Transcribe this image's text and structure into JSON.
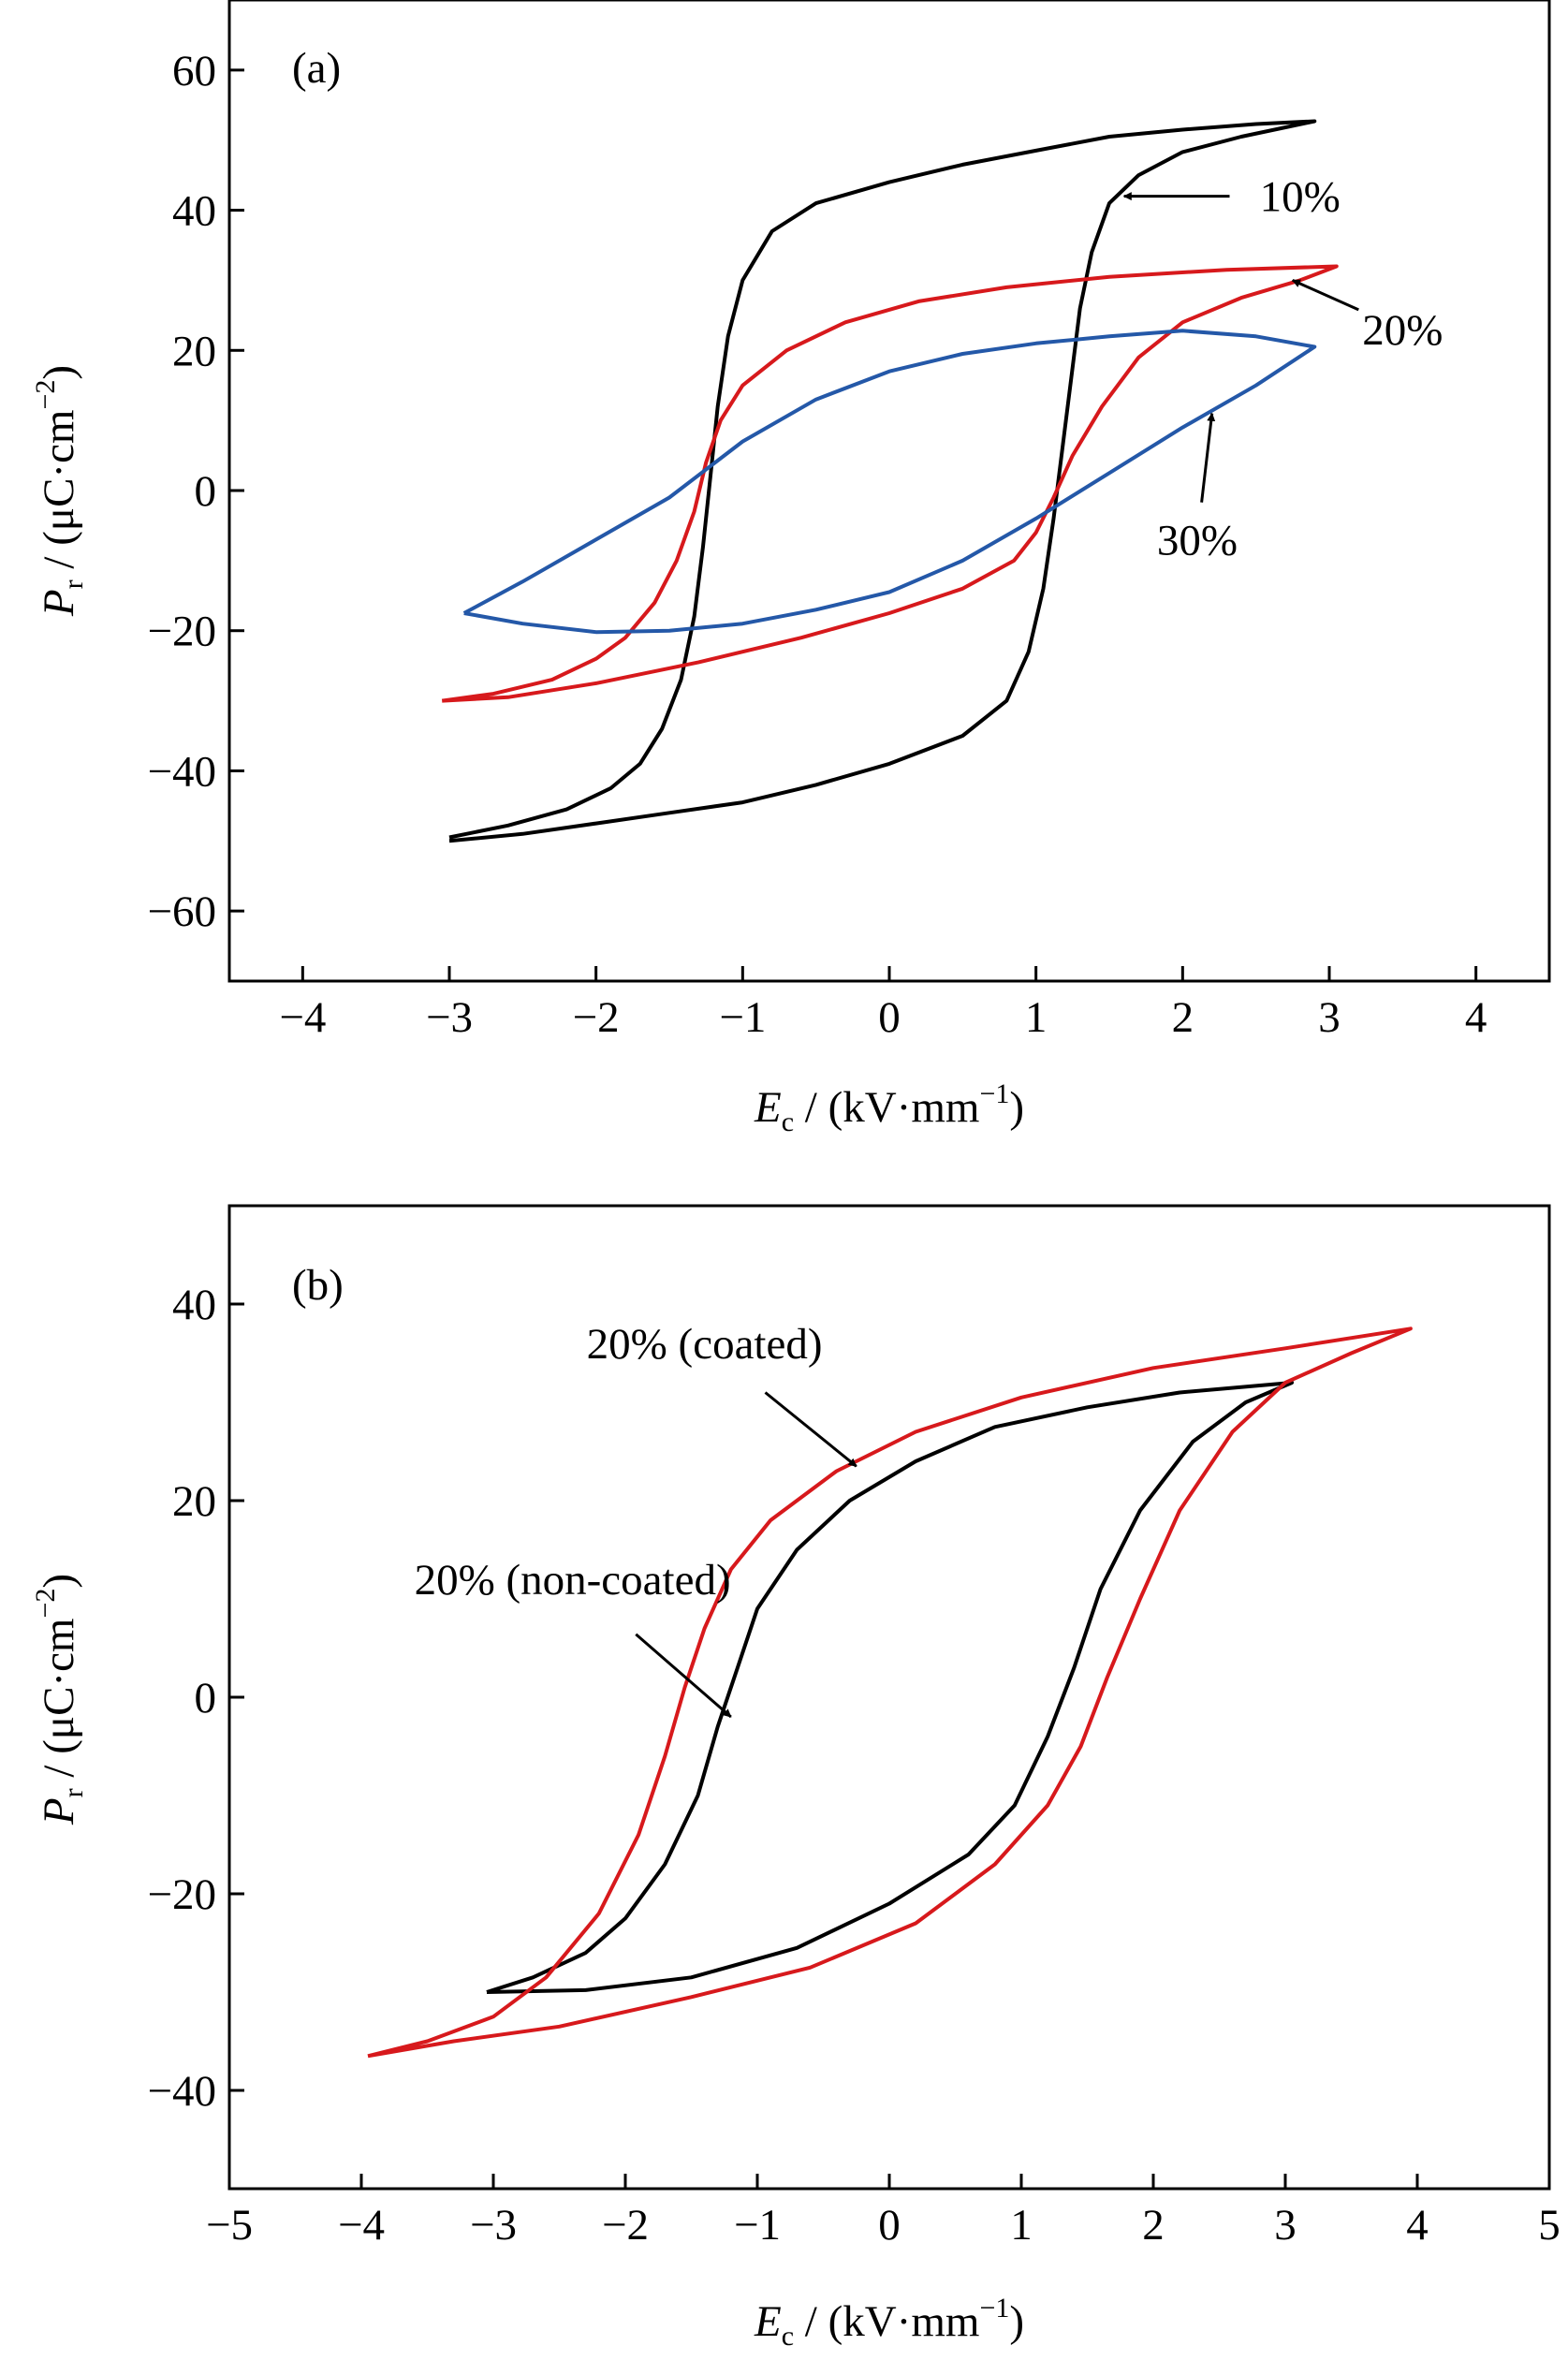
{
  "chart_data": [
    {
      "type": "line",
      "panel_label": "(a)",
      "xlabel_main": "E",
      "xlabel_sub": "c",
      "xlabel_rest": " / (kV·mm",
      "xlabel_sup": "−1",
      "xlabel_close": ")",
      "ylabel_main": "P",
      "ylabel_sub": "r",
      "ylabel_rest": " / (μC·cm",
      "ylabel_sup": "−2",
      "ylabel_close": ")",
      "xlim": [
        -4.5,
        4.5
      ],
      "ylim": [
        -70,
        70
      ],
      "xticks": [
        -4,
        -3,
        -2,
        -1,
        0,
        1,
        2,
        3,
        4
      ],
      "xtick_labels": [
        "−4",
        "−3",
        "−2",
        "−1",
        "0",
        "1",
        "2",
        "3",
        "4"
      ],
      "yticks": [
        -60,
        -40,
        -20,
        0,
        20,
        40,
        60
      ],
      "ytick_labels": [
        "−60",
        "−40",
        "−20",
        "0",
        "20",
        "40",
        "60"
      ],
      "grid": false,
      "series": [
        {
          "name": "10%",
          "color": "#000000",
          "upper": [
            [
              -3.0,
              -49.5
            ],
            [
              -2.6,
              -47.8
            ],
            [
              -2.2,
              -45.5
            ],
            [
              -1.9,
              -42.5
            ],
            [
              -1.7,
              -39
            ],
            [
              -1.55,
              -34
            ],
            [
              -1.42,
              -27
            ],
            [
              -1.33,
              -18
            ],
            [
              -1.27,
              -8
            ],
            [
              -1.22,
              2
            ],
            [
              -1.17,
              12
            ],
            [
              -1.1,
              22
            ],
            [
              -1.0,
              30
            ],
            [
              -0.8,
              37
            ],
            [
              -0.5,
              41
            ],
            [
              0,
              44
            ],
            [
              0.5,
              46.5
            ],
            [
              1.0,
              48.5
            ],
            [
              1.5,
              50.5
            ],
            [
              2.0,
              51.5
            ],
            [
              2.5,
              52.3
            ],
            [
              2.9,
              52.7
            ]
          ],
          "lower": [
            [
              2.9,
              52.7
            ],
            [
              2.4,
              50.5
            ],
            [
              2.0,
              48.3
            ],
            [
              1.7,
              45
            ],
            [
              1.5,
              41
            ],
            [
              1.38,
              34
            ],
            [
              1.3,
              26
            ],
            [
              1.24,
              16
            ],
            [
              1.18,
              6
            ],
            [
              1.12,
              -4
            ],
            [
              1.05,
              -14
            ],
            [
              0.95,
              -23
            ],
            [
              0.8,
              -30
            ],
            [
              0.5,
              -35
            ],
            [
              0,
              -39
            ],
            [
              -0.5,
              -42
            ],
            [
              -1.0,
              -44.5
            ],
            [
              -1.5,
              -46
            ],
            [
              -2.0,
              -47.5
            ],
            [
              -2.5,
              -49
            ],
            [
              -3.0,
              -50
            ]
          ]
        },
        {
          "name": "20%",
          "color": "#d7191c",
          "upper": [
            [
              -3.05,
              -30
            ],
            [
              -2.7,
              -29
            ],
            [
              -2.3,
              -27
            ],
            [
              -2.0,
              -24
            ],
            [
              -1.8,
              -21
            ],
            [
              -1.6,
              -16
            ],
            [
              -1.45,
              -10
            ],
            [
              -1.33,
              -3
            ],
            [
              -1.25,
              4
            ],
            [
              -1.15,
              10
            ],
            [
              -1.0,
              15
            ],
            [
              -0.7,
              20
            ],
            [
              -0.3,
              24
            ],
            [
              0.2,
              27
            ],
            [
              0.8,
              29
            ],
            [
              1.5,
              30.5
            ],
            [
              2.3,
              31.5
            ],
            [
              3.05,
              32
            ]
          ],
          "lower": [
            [
              3.05,
              32
            ],
            [
              2.8,
              30
            ],
            [
              2.4,
              27.5
            ],
            [
              2.0,
              24
            ],
            [
              1.7,
              19
            ],
            [
              1.45,
              12
            ],
            [
              1.25,
              5
            ],
            [
              1.12,
              -1
            ],
            [
              1.0,
              -6
            ],
            [
              0.85,
              -10
            ],
            [
              0.5,
              -14
            ],
            [
              0,
              -17.5
            ],
            [
              -0.6,
              -21
            ],
            [
              -1.3,
              -24.5
            ],
            [
              -2.0,
              -27.5
            ],
            [
              -2.6,
              -29.5
            ],
            [
              -3.05,
              -30
            ]
          ]
        },
        {
          "name": "30%",
          "color": "#2458a8",
          "upper": [
            [
              -2.9,
              -17.5
            ],
            [
              -2.5,
              -13
            ],
            [
              -2.0,
              -7
            ],
            [
              -1.5,
              -1
            ],
            [
              -1.0,
              7
            ],
            [
              -0.5,
              13
            ],
            [
              0,
              17
            ],
            [
              0.5,
              19.5
            ],
            [
              1.0,
              21
            ],
            [
              1.5,
              22
            ],
            [
              2.0,
              22.8
            ],
            [
              2.5,
              22
            ],
            [
              2.9,
              20.5
            ]
          ],
          "lower": [
            [
              2.9,
              20.5
            ],
            [
              2.5,
              15
            ],
            [
              2.0,
              9
            ],
            [
              1.5,
              2.5
            ],
            [
              1.0,
              -4
            ],
            [
              0.5,
              -10
            ],
            [
              0,
              -14.5
            ],
            [
              -0.5,
              -17
            ],
            [
              -1.0,
              -19
            ],
            [
              -1.5,
              -20
            ],
            [
              -2.0,
              -20.2
            ],
            [
              -2.5,
              -19
            ],
            [
              -2.9,
              -17.5
            ]
          ]
        }
      ],
      "annotations": [
        {
          "text": "10%",
          "tip": [
            1.6,
            42
          ],
          "text_pos": [
            2.8,
            42
          ]
        },
        {
          "text": "20%",
          "tip": [
            2.75,
            30
          ],
          "text_pos": [
            3.5,
            23
          ]
        },
        {
          "text": "30%",
          "tip": [
            2.2,
            11
          ],
          "text_pos": [
            2.1,
            -7
          ]
        }
      ]
    },
    {
      "type": "line",
      "panel_label": "(b)",
      "xlabel_main": "E",
      "xlabel_sub": "c",
      "xlabel_rest": " / (kV·mm",
      "xlabel_sup": "−1",
      "xlabel_close": ")",
      "ylabel_main": "P",
      "ylabel_sub": "r",
      "ylabel_rest": " / (μC·cm",
      "ylabel_sup": "−2",
      "ylabel_close": ")",
      "xlim": [
        -5,
        5
      ],
      "ylim": [
        -50,
        50
      ],
      "xticks": [
        -5,
        -4,
        -3,
        -2,
        -1,
        0,
        1,
        2,
        3,
        4,
        5
      ],
      "xtick_labels": [
        "−5",
        "−4",
        "−3",
        "−2",
        "−1",
        "0",
        "1",
        "2",
        "3",
        "4",
        "5"
      ],
      "yticks": [
        -40,
        -20,
        0,
        20,
        40
      ],
      "ytick_labels": [
        "−40",
        "−20",
        "0",
        "20",
        "40"
      ],
      "grid": false,
      "series": [
        {
          "name": "20% (non-coated)",
          "color": "#000000",
          "upper": [
            [
              -3.05,
              -30
            ],
            [
              -2.7,
              -28.5
            ],
            [
              -2.3,
              -26
            ],
            [
              -2.0,
              -22.5
            ],
            [
              -1.7,
              -17
            ],
            [
              -1.45,
              -10
            ],
            [
              -1.3,
              -3
            ],
            [
              -1.15,
              3
            ],
            [
              -1.0,
              9
            ],
            [
              -0.7,
              15
            ],
            [
              -0.3,
              20
            ],
            [
              0.2,
              24
            ],
            [
              0.8,
              27.5
            ],
            [
              1.5,
              29.5
            ],
            [
              2.2,
              31
            ],
            [
              3.05,
              32
            ]
          ],
          "lower": [
            [
              3.05,
              32
            ],
            [
              2.7,
              30
            ],
            [
              2.3,
              26
            ],
            [
              1.9,
              19
            ],
            [
              1.6,
              11
            ],
            [
              1.4,
              3
            ],
            [
              1.2,
              -4
            ],
            [
              0.95,
              -11
            ],
            [
              0.6,
              -16
            ],
            [
              0,
              -21
            ],
            [
              -0.7,
              -25.5
            ],
            [
              -1.5,
              -28.5
            ],
            [
              -2.3,
              -29.8
            ],
            [
              -3.05,
              -30
            ]
          ]
        },
        {
          "name": "20% (coated)",
          "color": "#d7191c",
          "upper": [
            [
              -3.95,
              -36.5
            ],
            [
              -3.5,
              -35
            ],
            [
              -3.0,
              -32.5
            ],
            [
              -2.6,
              -28.5
            ],
            [
              -2.2,
              -22
            ],
            [
              -1.9,
              -14
            ],
            [
              -1.7,
              -6
            ],
            [
              -1.55,
              1
            ],
            [
              -1.4,
              7
            ],
            [
              -1.2,
              13
            ],
            [
              -0.9,
              18
            ],
            [
              -0.4,
              23
            ],
            [
              0.2,
              27
            ],
            [
              1.0,
              30.5
            ],
            [
              2.0,
              33.5
            ],
            [
              3.0,
              35.5
            ],
            [
              3.95,
              37.5
            ]
          ],
          "lower": [
            [
              3.95,
              37.5
            ],
            [
              3.5,
              35
            ],
            [
              3.0,
              32
            ],
            [
              2.6,
              27
            ],
            [
              2.2,
              19
            ],
            [
              1.9,
              10
            ],
            [
              1.65,
              2
            ],
            [
              1.45,
              -5
            ],
            [
              1.2,
              -11
            ],
            [
              0.8,
              -17
            ],
            [
              0.2,
              -23
            ],
            [
              -0.6,
              -27.5
            ],
            [
              -1.5,
              -30.5
            ],
            [
              -2.5,
              -33.5
            ],
            [
              -3.3,
              -35
            ],
            [
              -3.95,
              -36.5
            ]
          ]
        }
      ],
      "annotations": [
        {
          "text": "20% (coated)",
          "tip": [
            -0.25,
            23.5
          ],
          "text_pos": [
            -1.4,
            36
          ]
        },
        {
          "text": "20% (non-coated)",
          "tip": [
            -1.2,
            -2
          ],
          "text_pos": [
            -2.4,
            12
          ]
        }
      ]
    }
  ]
}
